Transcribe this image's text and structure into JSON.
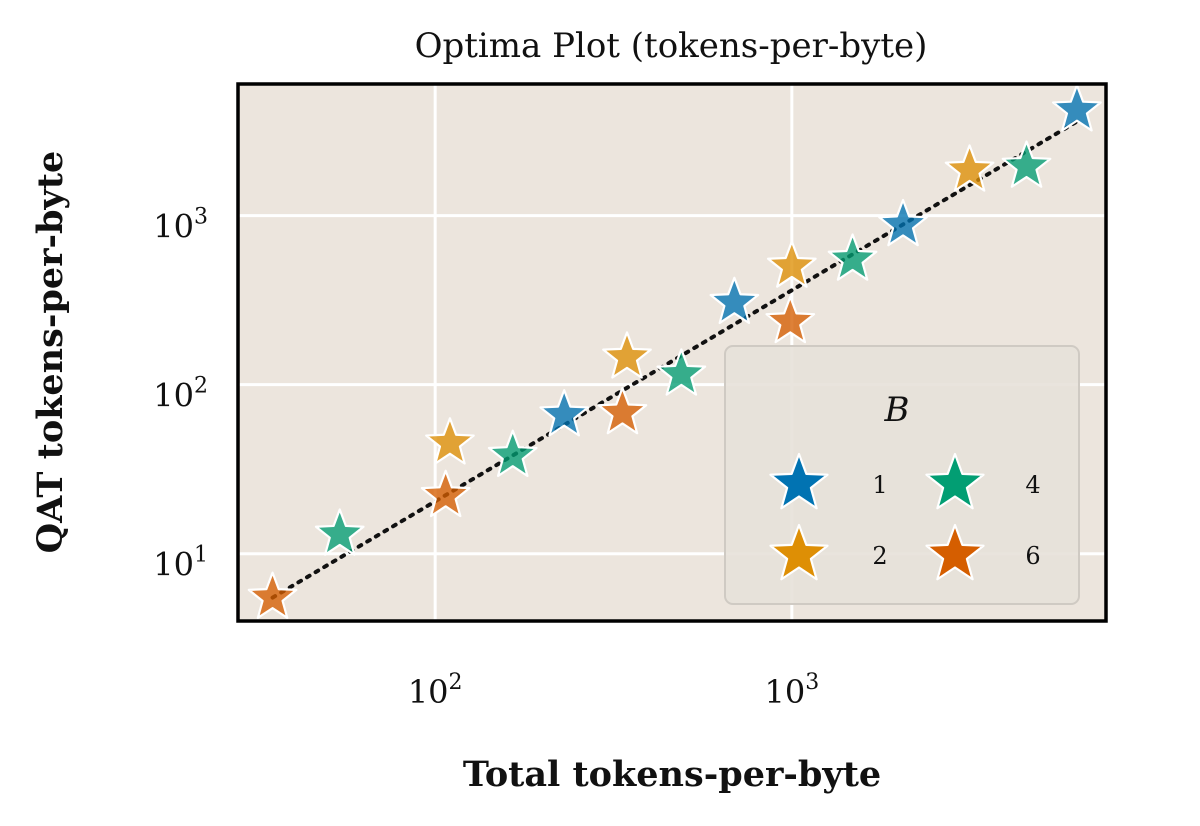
{
  "chart_data": {
    "type": "scatter",
    "title": "Optima Plot (tokens-per-byte)",
    "xlabel": "Total tokens-per-byte",
    "ylabel": "QAT tokens-per-byte",
    "xscale": "log",
    "yscale": "log",
    "xlim": [
      28,
      7600
    ],
    "ylim": [
      4,
      6000
    ],
    "x_ticks": [
      100,
      1000
    ],
    "y_ticks": [
      10,
      100,
      1000
    ],
    "x_tick_labels": [
      {
        "base": "10",
        "exp": "2"
      },
      {
        "base": "10",
        "exp": "3"
      }
    ],
    "y_tick_labels": [
      {
        "base": "10",
        "exp": "1"
      },
      {
        "base": "10",
        "exp": "2"
      },
      {
        "base": "10",
        "exp": "3"
      }
    ],
    "grid": true,
    "trend_line": {
      "style": "dotted",
      "from": [
        35,
        5.5
      ],
      "to": [
        6300,
        3600
      ]
    },
    "legend": {
      "title": "B",
      "position": "lower-right",
      "columns": 2,
      "entries": [
        {
          "label": "1",
          "color": "#0173b2"
        },
        {
          "label": "4",
          "color": "#029e73"
        },
        {
          "label": "2",
          "color": "#de8f05"
        },
        {
          "label": "6",
          "color": "#d55e00"
        }
      ]
    },
    "series": [
      {
        "name": "1",
        "color": "#0173b2",
        "points": [
          [
            230,
            66
          ],
          [
            690,
            305
          ],
          [
            2050,
            880
          ],
          [
            6300,
            4200
          ]
        ]
      },
      {
        "name": "2",
        "color": "#de8f05",
        "points": [
          [
            110,
            45
          ],
          [
            345,
            145
          ],
          [
            1000,
            500
          ],
          [
            3150,
            1850
          ]
        ]
      },
      {
        "name": "4",
        "color": "#029e73",
        "points": [
          [
            54,
            13
          ],
          [
            165,
            38
          ],
          [
            490,
            115
          ],
          [
            1480,
            550
          ],
          [
            4550,
            1950
          ]
        ]
      },
      {
        "name": "6",
        "color": "#d55e00",
        "points": [
          [
            35,
            5.5
          ],
          [
            107,
            22
          ],
          [
            335,
            68
          ],
          [
            990,
            235
          ]
        ]
      }
    ]
  },
  "colors": {
    "plot_background": "#ece5dd",
    "grid": "#ffffff",
    "frame": "#000000"
  }
}
